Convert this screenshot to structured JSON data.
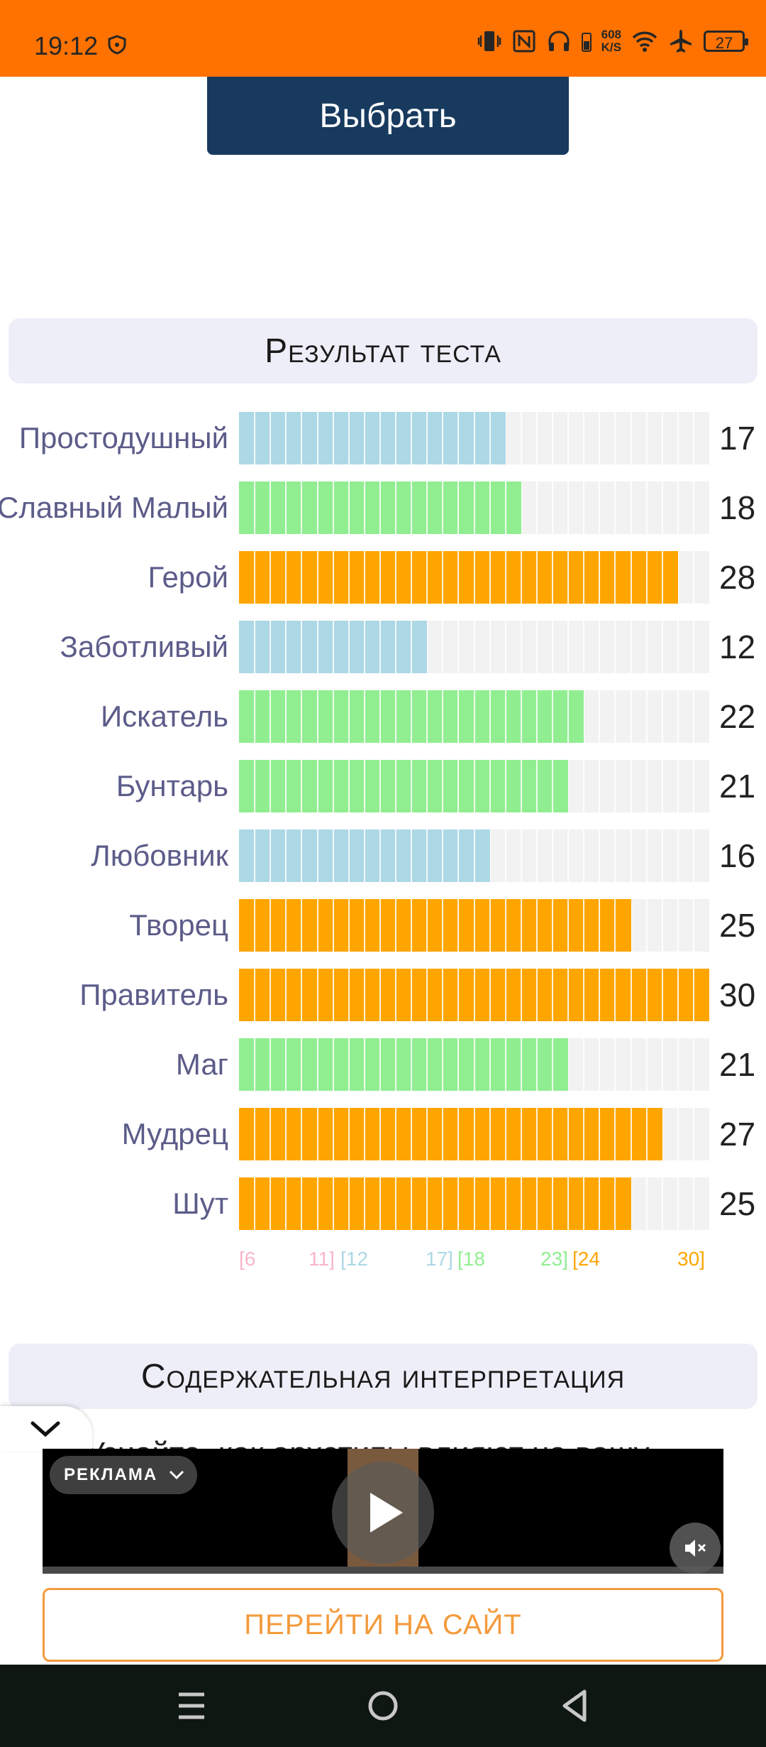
{
  "status_bar": {
    "time": "19:12",
    "net_speed_value": "608",
    "net_speed_unit": "K/S",
    "battery": "27",
    "icons": [
      "shield-icon",
      "vibrate-icon",
      "nfc-icon",
      "headphones-icon",
      "wifi-icon",
      "airplane-icon",
      "battery-icon"
    ]
  },
  "top_button": {
    "label": "Выбрать"
  },
  "results_header": "Результат теста",
  "chart_data": {
    "type": "bar",
    "orientation": "horizontal",
    "categories": [
      "Простодушный",
      "Славный Малый",
      "Герой",
      "Заботливый",
      "Искатель",
      "Бунтарь",
      "Любовник",
      "Творец",
      "Правитель",
      "Маг",
      "Мудрец",
      "Шут"
    ],
    "values": [
      17,
      18,
      28,
      12,
      22,
      21,
      16,
      25,
      30,
      21,
      27,
      25
    ],
    "xlim": [
      6,
      30
    ],
    "bands": [
      {
        "range": [
          6,
          11
        ],
        "color": "#f7b6c8",
        "label_start": "[6",
        "label_end": "11]"
      },
      {
        "range": [
          12,
          17
        ],
        "color": "#add8e6",
        "label_start": "[12",
        "label_end": "17]"
      },
      {
        "range": [
          18,
          23
        ],
        "color": "#90ee90",
        "label_start": "[18",
        "label_end": "23]"
      },
      {
        "range": [
          24,
          30
        ],
        "color": "#ffa500",
        "label_start": "[24",
        "label_end": "30]"
      }
    ]
  },
  "interpretation_header": "Содержательная интерпретация",
  "interpretation_text": "Узнайте, как архетипы влияют на вашу",
  "ad": {
    "badge": "РЕКЛАМА",
    "cta": "ПЕРЕЙТИ НА САЙТ"
  },
  "colors": {
    "status_bar": "#ff7200",
    "button": "#173a5e",
    "label": "#5c5c8a",
    "cta": "#f39a3c"
  }
}
